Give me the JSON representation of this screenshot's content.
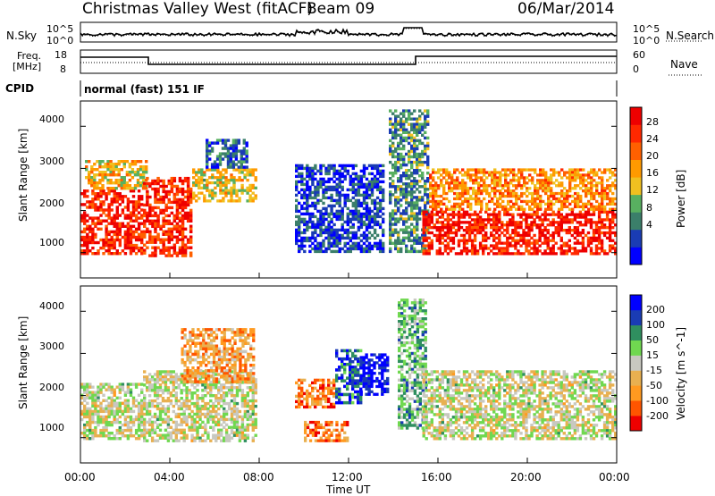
{
  "header": {
    "station": "Christmas Valley West (fitACF)",
    "beam": "Beam 09",
    "date": "06/Mar/2014"
  },
  "noise_panel": {
    "left_label": "N.Sky",
    "right_label": "N.Search",
    "tick_top": "10^5",
    "tick_bottom": "10^0"
  },
  "freq_panel": {
    "left_label_line1": "Freq.",
    "left_label_line2": "[MHz]",
    "right_label": "Nave",
    "left_ticks": [
      "18",
      "8"
    ],
    "right_ticks": [
      "60",
      "0"
    ]
  },
  "cpid": {
    "label": "CPID",
    "mode": "normal (fast) 151 IF"
  },
  "colors": {
    "power_scale": [
      "#0000ff",
      "#1a3cb4",
      "#3b7f6a",
      "#58b060",
      "#f0c020",
      "#ff9a00",
      "#ff6000",
      "#ff2800",
      "#ee0000"
    ],
    "velocity_scale": [
      "#ee0000",
      "#ff5500",
      "#ff9a20",
      "#e8b050",
      "#c8c8c0",
      "#70d850",
      "#2f8f5f",
      "#1a3cb4",
      "#0000ff"
    ]
  },
  "chart_data": [
    {
      "type": "heatmap",
      "name": "power",
      "ylabel": "Slant Range [km]",
      "yticks": [
        1000,
        2000,
        3000,
        4000
      ],
      "ylim": [
        400,
        4600
      ],
      "xlim": [
        0,
        24
      ],
      "colorbar": {
        "label": "Power [dB]",
        "ticks": [
          "28",
          "24",
          "20",
          "16",
          "12",
          "8",
          "4"
        ],
        "range": [
          0,
          32
        ]
      },
      "regions": [
        {
          "t0": 0.0,
          "t1": 2.8,
          "r0": 950,
          "r1": 2500,
          "level": 0.88
        },
        {
          "t0": 0.2,
          "t1": 3.0,
          "r0": 2500,
          "r1": 3200,
          "level": 0.55
        },
        {
          "t0": 2.8,
          "t1": 5.0,
          "r0": 900,
          "r1": 2800,
          "level": 0.85
        },
        {
          "t0": 5.0,
          "t1": 7.9,
          "r0": 2200,
          "r1": 3000,
          "level": 0.5
        },
        {
          "t0": 5.6,
          "t1": 7.5,
          "r0": 3000,
          "r1": 3700,
          "level": 0.2
        },
        {
          "t0": 9.6,
          "t1": 13.6,
          "r0": 1000,
          "r1": 3100,
          "level": 0.15
        },
        {
          "t0": 13.8,
          "t1": 15.6,
          "r0": 1000,
          "r1": 4400,
          "level": 0.3
        },
        {
          "t0": 15.3,
          "t1": 24.0,
          "r0": 950,
          "r1": 2000,
          "level": 0.9
        },
        {
          "t0": 15.6,
          "t1": 24.0,
          "r0": 2000,
          "r1": 3000,
          "level": 0.65
        }
      ]
    },
    {
      "type": "heatmap",
      "name": "velocity",
      "ylabel": "Slant Range [km]",
      "yticks": [
        1000,
        2000,
        3000,
        4000
      ],
      "ylim": [
        400,
        4600
      ],
      "xlim": [
        0,
        24
      ],
      "xlabel": "Time UT",
      "xticks": [
        "00:00",
        "04:00",
        "08:00",
        "12:00",
        "16:00",
        "20:00",
        "00:00"
      ],
      "colorbar": {
        "label": "Velocity [m s^-1]",
        "ticks": [
          "200",
          "100",
          "50",
          "15",
          "-15",
          "-50",
          "-100",
          "-200"
        ]
      },
      "regions": [
        {
          "t0": 0.0,
          "t1": 2.8,
          "r0": 950,
          "r1": 2300,
          "level": 0.5
        },
        {
          "t0": 2.8,
          "t1": 7.9,
          "r0": 900,
          "r1": 2600,
          "level": 0.5
        },
        {
          "t0": 4.5,
          "t1": 7.8,
          "r0": 2300,
          "r1": 3600,
          "level": 0.3
        },
        {
          "t0": 9.6,
          "t1": 11.4,
          "r0": 1700,
          "r1": 2400,
          "level": 0.22
        },
        {
          "t0": 10.0,
          "t1": 12.0,
          "r0": 900,
          "r1": 1400,
          "level": 0.25
        },
        {
          "t0": 11.4,
          "t1": 12.6,
          "r0": 1800,
          "r1": 3100,
          "level": 0.8
        },
        {
          "t0": 12.5,
          "t1": 13.8,
          "r0": 2000,
          "r1": 3000,
          "level": 0.95
        },
        {
          "t0": 14.2,
          "t1": 15.5,
          "r0": 1200,
          "r1": 4300,
          "level": 0.65
        },
        {
          "t0": 15.3,
          "t1": 24.0,
          "r0": 950,
          "r1": 2600,
          "level": 0.5
        }
      ]
    }
  ]
}
